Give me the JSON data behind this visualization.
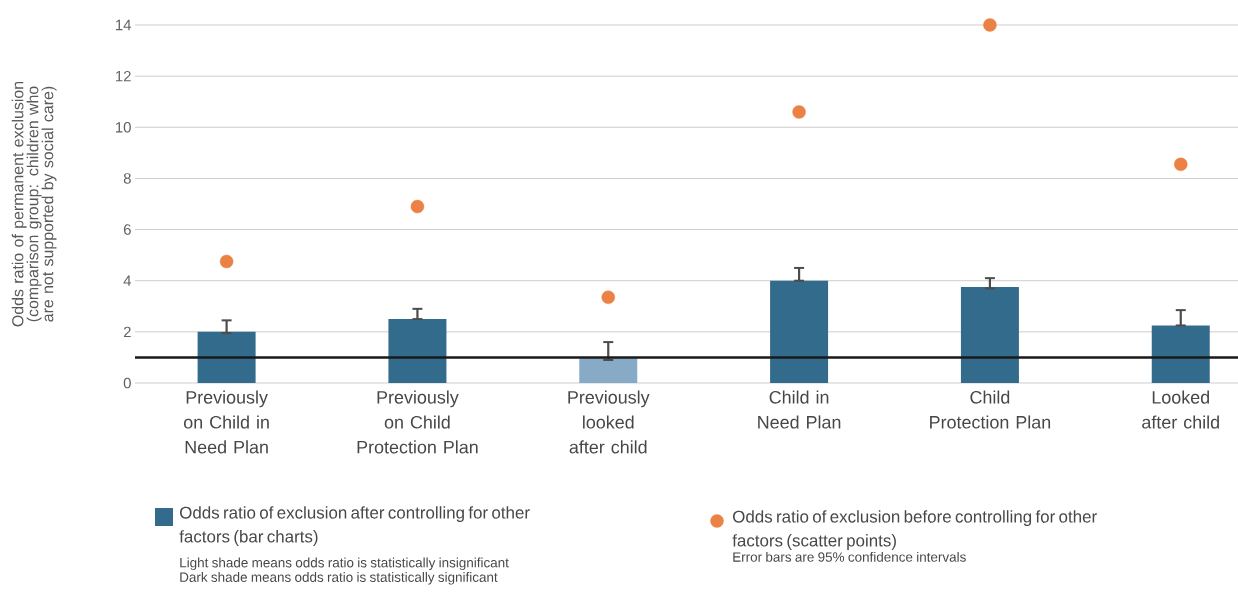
{
  "chart_data": {
    "type": "bar",
    "ylabel": "Odds ratio of permanent exclusion (comparison group: children who are not supported by social care)",
    "categories": [
      "Previously on Child in Need Plan",
      "Previously on Child Protection Plan",
      "Previously looked after child",
      "Child in Need Plan",
      "Child Protection Plan",
      "Looked after child"
    ],
    "ylim": [
      0,
      14
    ],
    "yticks": [
      0,
      2,
      4,
      6,
      8,
      10,
      12,
      14
    ],
    "grid": "y",
    "legend": "bottom",
    "series": [
      {
        "name": "Odds ratio of exclusion after controlling for other factors (bar charts)",
        "color": "#336b8c",
        "colors": [
          "#336b8c",
          "#336b8c",
          "#87abc6",
          "#336b8c",
          "#336b8c",
          "#336b8c"
        ],
        "values": [
          2.0,
          2.5,
          1.0,
          4.0,
          3.75,
          2.25
        ],
        "errors": [
          [
            1.95,
            2.45
          ],
          [
            2.5,
            2.9
          ],
          [
            0.9,
            1.6
          ],
          [
            4.0,
            4.5
          ],
          [
            3.7,
            4.1
          ],
          [
            2.25,
            2.85
          ]
        ]
      },
      {
        "name": "Odds ratio of exclusion before controlling for other factors (scatter points)",
        "type": "scatter",
        "color": "#ec8145",
        "marker": "circle",
        "values": [
          4.75,
          6.9,
          3.35,
          10.6,
          14.0,
          8.55
        ]
      }
    ],
    "ref_lines": [
      {
        "axis": "y",
        "value": 1,
        "color": "#1a1a1a"
      }
    ],
    "annotations": [
      "Light shade means odds ratio is statistically insignificant",
      "Dark shade means odds ratio is statistically significant",
      "Error bars are 95% confidence intervals"
    ]
  }
}
